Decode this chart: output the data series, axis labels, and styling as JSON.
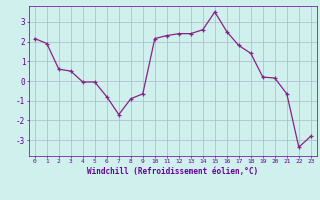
{
  "x": [
    0,
    1,
    2,
    3,
    4,
    5,
    6,
    7,
    8,
    9,
    10,
    11,
    12,
    13,
    14,
    15,
    16,
    17,
    18,
    19,
    20,
    21,
    22,
    23
  ],
  "y": [
    2.15,
    1.9,
    0.6,
    0.5,
    -0.05,
    -0.05,
    -0.8,
    -1.7,
    -0.9,
    -0.65,
    2.15,
    2.3,
    2.4,
    2.4,
    2.6,
    3.5,
    2.5,
    1.8,
    1.4,
    0.2,
    0.15,
    -0.65,
    -3.35,
    -2.8
  ],
  "ylim": [
    -3.8,
    3.8
  ],
  "yticks": [
    -3,
    -2,
    -1,
    0,
    1,
    2,
    3
  ],
  "xticks": [
    0,
    1,
    2,
    3,
    4,
    5,
    6,
    7,
    8,
    9,
    10,
    11,
    12,
    13,
    14,
    15,
    16,
    17,
    18,
    19,
    20,
    21,
    22,
    23
  ],
  "line_color": "#882288",
  "marker": "+",
  "marker_size": 3,
  "bg_color": "#cff0ec",
  "grid_color": "#aab8cc",
  "xlabel": "Windchill (Refroidissement éolien,°C)",
  "xlabel_color": "#660099",
  "tick_color": "#660099",
  "figsize": [
    3.2,
    2.0
  ],
  "dpi": 100
}
